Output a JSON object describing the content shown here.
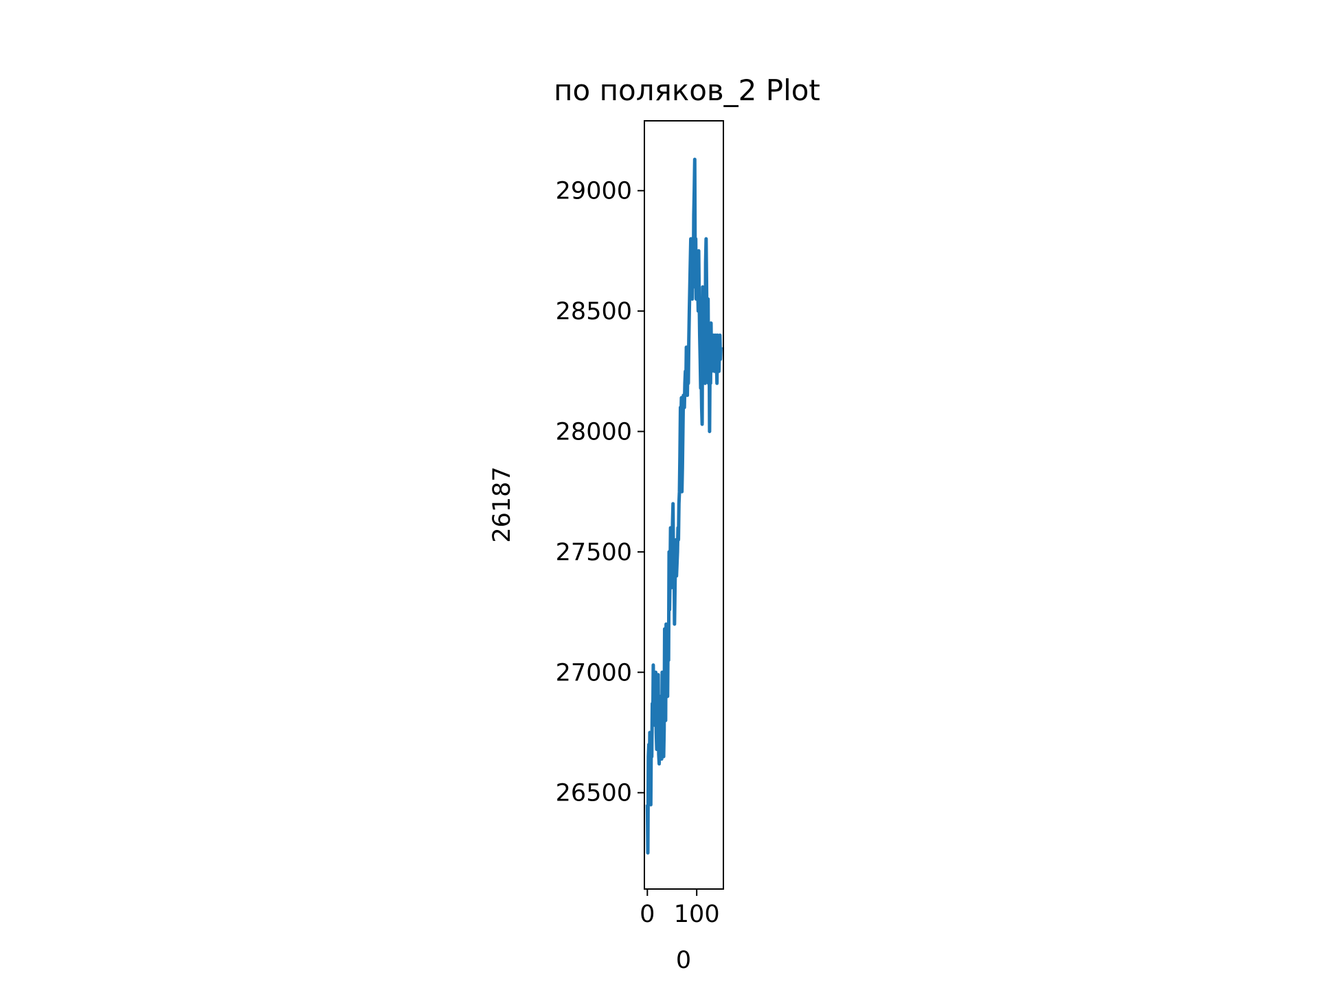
{
  "chart_data": {
    "type": "line",
    "title": "по поляков_2 Plot",
    "xlabel": "0",
    "ylabel": "26187",
    "xlim": [
      -6,
      154
    ],
    "ylim": [
      26100,
      29290
    ],
    "xticks": [
      0,
      100
    ],
    "xtick_labels": [
      "0",
      "100"
    ],
    "yticks": [
      26500,
      27000,
      27500,
      28000,
      28500,
      29000
    ],
    "ytick_labels": [
      "26500",
      "27000",
      "27500",
      "28000",
      "28500",
      "29000"
    ],
    "grid": false,
    "legend": "none",
    "series": [
      {
        "color": "#1f77b4",
        "x": [
          0,
          1,
          2,
          3,
          4,
          5,
          6,
          7,
          8,
          9,
          10,
          11,
          12,
          13,
          14,
          15,
          16,
          17,
          18,
          19,
          20,
          21,
          22,
          23,
          24,
          25,
          26,
          27,
          28,
          29,
          30,
          31,
          32,
          33,
          34,
          35,
          36,
          37,
          38,
          39,
          40,
          41,
          42,
          43,
          44,
          45,
          46,
          47,
          48,
          49,
          50,
          51,
          52,
          53,
          54,
          55,
          56,
          57,
          58,
          59,
          60,
          61,
          62,
          63,
          64,
          65,
          66,
          67,
          68,
          69,
          70,
          71,
          72,
          73,
          74,
          75,
          76,
          77,
          78,
          79,
          80,
          81,
          82,
          83,
          84,
          85,
          86,
          87,
          88,
          89,
          90,
          91,
          92,
          93,
          94,
          95,
          96,
          97,
          98,
          99,
          100,
          101,
          102,
          103,
          104,
          105,
          106,
          107,
          108,
          109,
          110,
          111,
          112,
          113,
          114,
          115,
          116,
          117,
          118,
          119,
          120,
          121,
          122,
          123,
          124,
          125,
          126,
          127,
          128,
          129,
          130,
          131,
          132,
          133,
          134,
          135,
          136,
          137,
          138,
          139,
          140,
          141,
          142,
          143,
          144,
          145,
          146,
          147,
          148,
          149
        ],
        "y": [
          26450,
          26250,
          26650,
          26700,
          26550,
          26750,
          26600,
          26450,
          26730,
          26650,
          26870,
          26780,
          27030,
          26850,
          26950,
          26780,
          26800,
          27000,
          26750,
          26680,
          26900,
          26850,
          26990,
          26660,
          26620,
          26760,
          26800,
          26900,
          26700,
          26640,
          27000,
          26800,
          26880,
          26650,
          26760,
          27180,
          26920,
          26800,
          27200,
          26980,
          26950,
          26900,
          27150,
          27050,
          27500,
          27260,
          27400,
          27600,
          27350,
          27550,
          27400,
          27620,
          27700,
          27400,
          27550,
          27200,
          27350,
          27480,
          27550,
          27400,
          27450,
          27500,
          27600,
          27550,
          27700,
          27750,
          27900,
          28100,
          28050,
          28140,
          27750,
          27850,
          28000,
          28150,
          28120,
          28100,
          28200,
          28250,
          28180,
          28350,
          28270,
          28150,
          28300,
          28200,
          28380,
          28500,
          28600,
          28700,
          28800,
          28650,
          28800,
          28550,
          28700,
          28600,
          28900,
          29000,
          29130,
          28600,
          28800,
          28550,
          28750,
          28700,
          28600,
          28500,
          28750,
          28550,
          28400,
          28300,
          28180,
          28250,
          28100,
          28030,
          28600,
          28250,
          28500,
          28300,
          28600,
          28200,
          28700,
          28800,
          28600,
          28400,
          28300,
          28550,
          28200,
          28450,
          28000,
          28300,
          28200,
          28450,
          28250,
          28380,
          28300,
          28400,
          28300,
          28400,
          28250,
          28350,
          28400,
          28350,
          28300,
          28200,
          28400,
          28350,
          28300,
          28250,
          28350,
          28400,
          28300,
          28350
        ]
      }
    ]
  }
}
